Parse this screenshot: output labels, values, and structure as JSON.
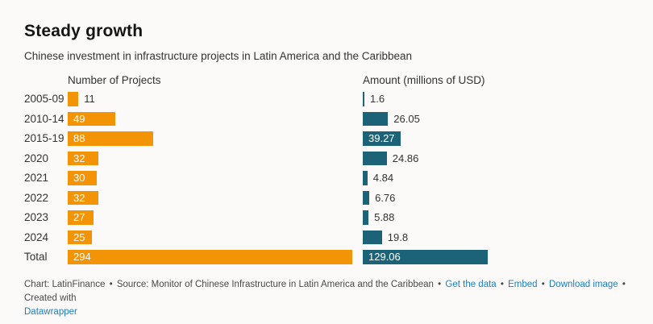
{
  "title": "Steady growth",
  "subtitle": "Chinese investment in infrastructure projects in Latin America and the Caribbean",
  "columns": {
    "projects": "Number of Projects",
    "amount": "Amount (millions of USD)"
  },
  "chart_data": {
    "type": "bar",
    "orientation": "horizontal",
    "categories": [
      "2005-09",
      "2010-14",
      "2015-19",
      "2020",
      "2021",
      "2022",
      "2023",
      "2024",
      "Total"
    ],
    "series": [
      {
        "name": "Number of Projects",
        "values": [
          11,
          49,
          88,
          32,
          30,
          32,
          27,
          25,
          294
        ],
        "labels": [
          "11",
          "49",
          "88",
          "32",
          "30",
          "32",
          "27",
          "25",
          "294"
        ],
        "color": "#F39306"
      },
      {
        "name": "Amount (millions of USD)",
        "values": [
          1.6,
          26.05,
          39.27,
          24.86,
          4.84,
          6.76,
          5.88,
          19.8,
          129.06
        ],
        "labels": [
          "1.6",
          "26.05",
          "39.27",
          "24.86",
          "4.84",
          "6.76",
          "5.88",
          "19.8",
          "129.06"
        ],
        "color": "#1C6378"
      }
    ],
    "xmax": [
      294,
      129.06
    ],
    "grid": false,
    "legend": "none",
    "value_labels": "on-bar-or-outside"
  },
  "colors": {
    "background": "#FBFAF8",
    "projects_bar": "#F39306",
    "amount_bar": "#1C6378",
    "inside_label": "#FFFFFF",
    "text": "#333333",
    "footer_text": "#494949",
    "link": "#1D7CBF"
  },
  "footer": {
    "chart_credit": "Chart: LatinFinance",
    "source": "Source: Monitor of Chinese Infrastructure in Latin America and the Caribbean",
    "separator": "•",
    "links": [
      "Get the data",
      "Embed",
      "Download image"
    ],
    "created_with": "Created with",
    "datawrapper": "Datawrapper"
  }
}
